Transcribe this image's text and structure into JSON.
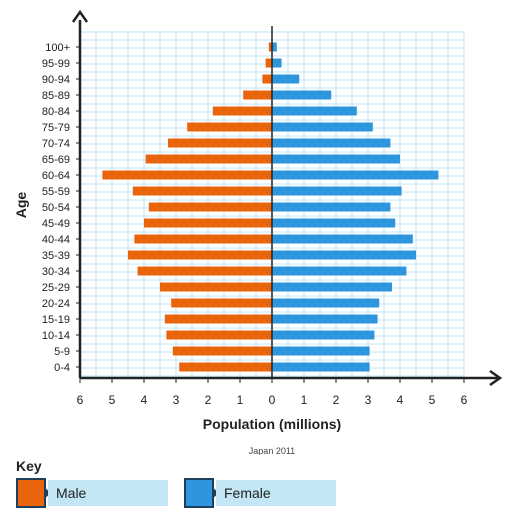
{
  "chart_data": {
    "type": "bar",
    "orientation": "horizontal",
    "subtype": "population-pyramid",
    "categories": [
      "100+",
      "95-99",
      "90-94",
      "85-89",
      "80-84",
      "75-79",
      "70-74",
      "65-69",
      "60-64",
      "55-59",
      "50-54",
      "45-49",
      "40-44",
      "35-39",
      "30-34",
      "25-29",
      "20-24",
      "15-19",
      "10-14",
      "5-9",
      "0-4"
    ],
    "series": [
      {
        "name": "Male",
        "color": "#e8650e",
        "side": "left",
        "values": [
          0.1,
          0.2,
          0.3,
          0.9,
          1.85,
          2.65,
          3.25,
          3.95,
          5.3,
          4.35,
          3.85,
          4.0,
          4.3,
          4.5,
          4.2,
          3.5,
          3.15,
          3.35,
          3.3,
          3.1,
          2.9
        ]
      },
      {
        "name": "Female",
        "color": "#2e96dc",
        "side": "right",
        "values": [
          0.15,
          0.3,
          0.85,
          1.85,
          2.65,
          3.15,
          3.7,
          4.0,
          5.2,
          4.05,
          3.7,
          3.85,
          4.4,
          4.5,
          4.2,
          3.75,
          3.35,
          3.3,
          3.2,
          3.05,
          3.05
        ]
      }
    ],
    "x_ticks": [
      "6",
      "5",
      "4",
      "3",
      "2",
      "1",
      "0",
      "1",
      "2",
      "3",
      "4",
      "5",
      "6"
    ],
    "xlim": [
      -6,
      6
    ],
    "xlabel": "Population (millions)",
    "ylabel": "Age",
    "caption": "Japan 2011",
    "grid": true
  },
  "key": {
    "title": "Key",
    "male_label": "Male",
    "female_label": "Female"
  }
}
